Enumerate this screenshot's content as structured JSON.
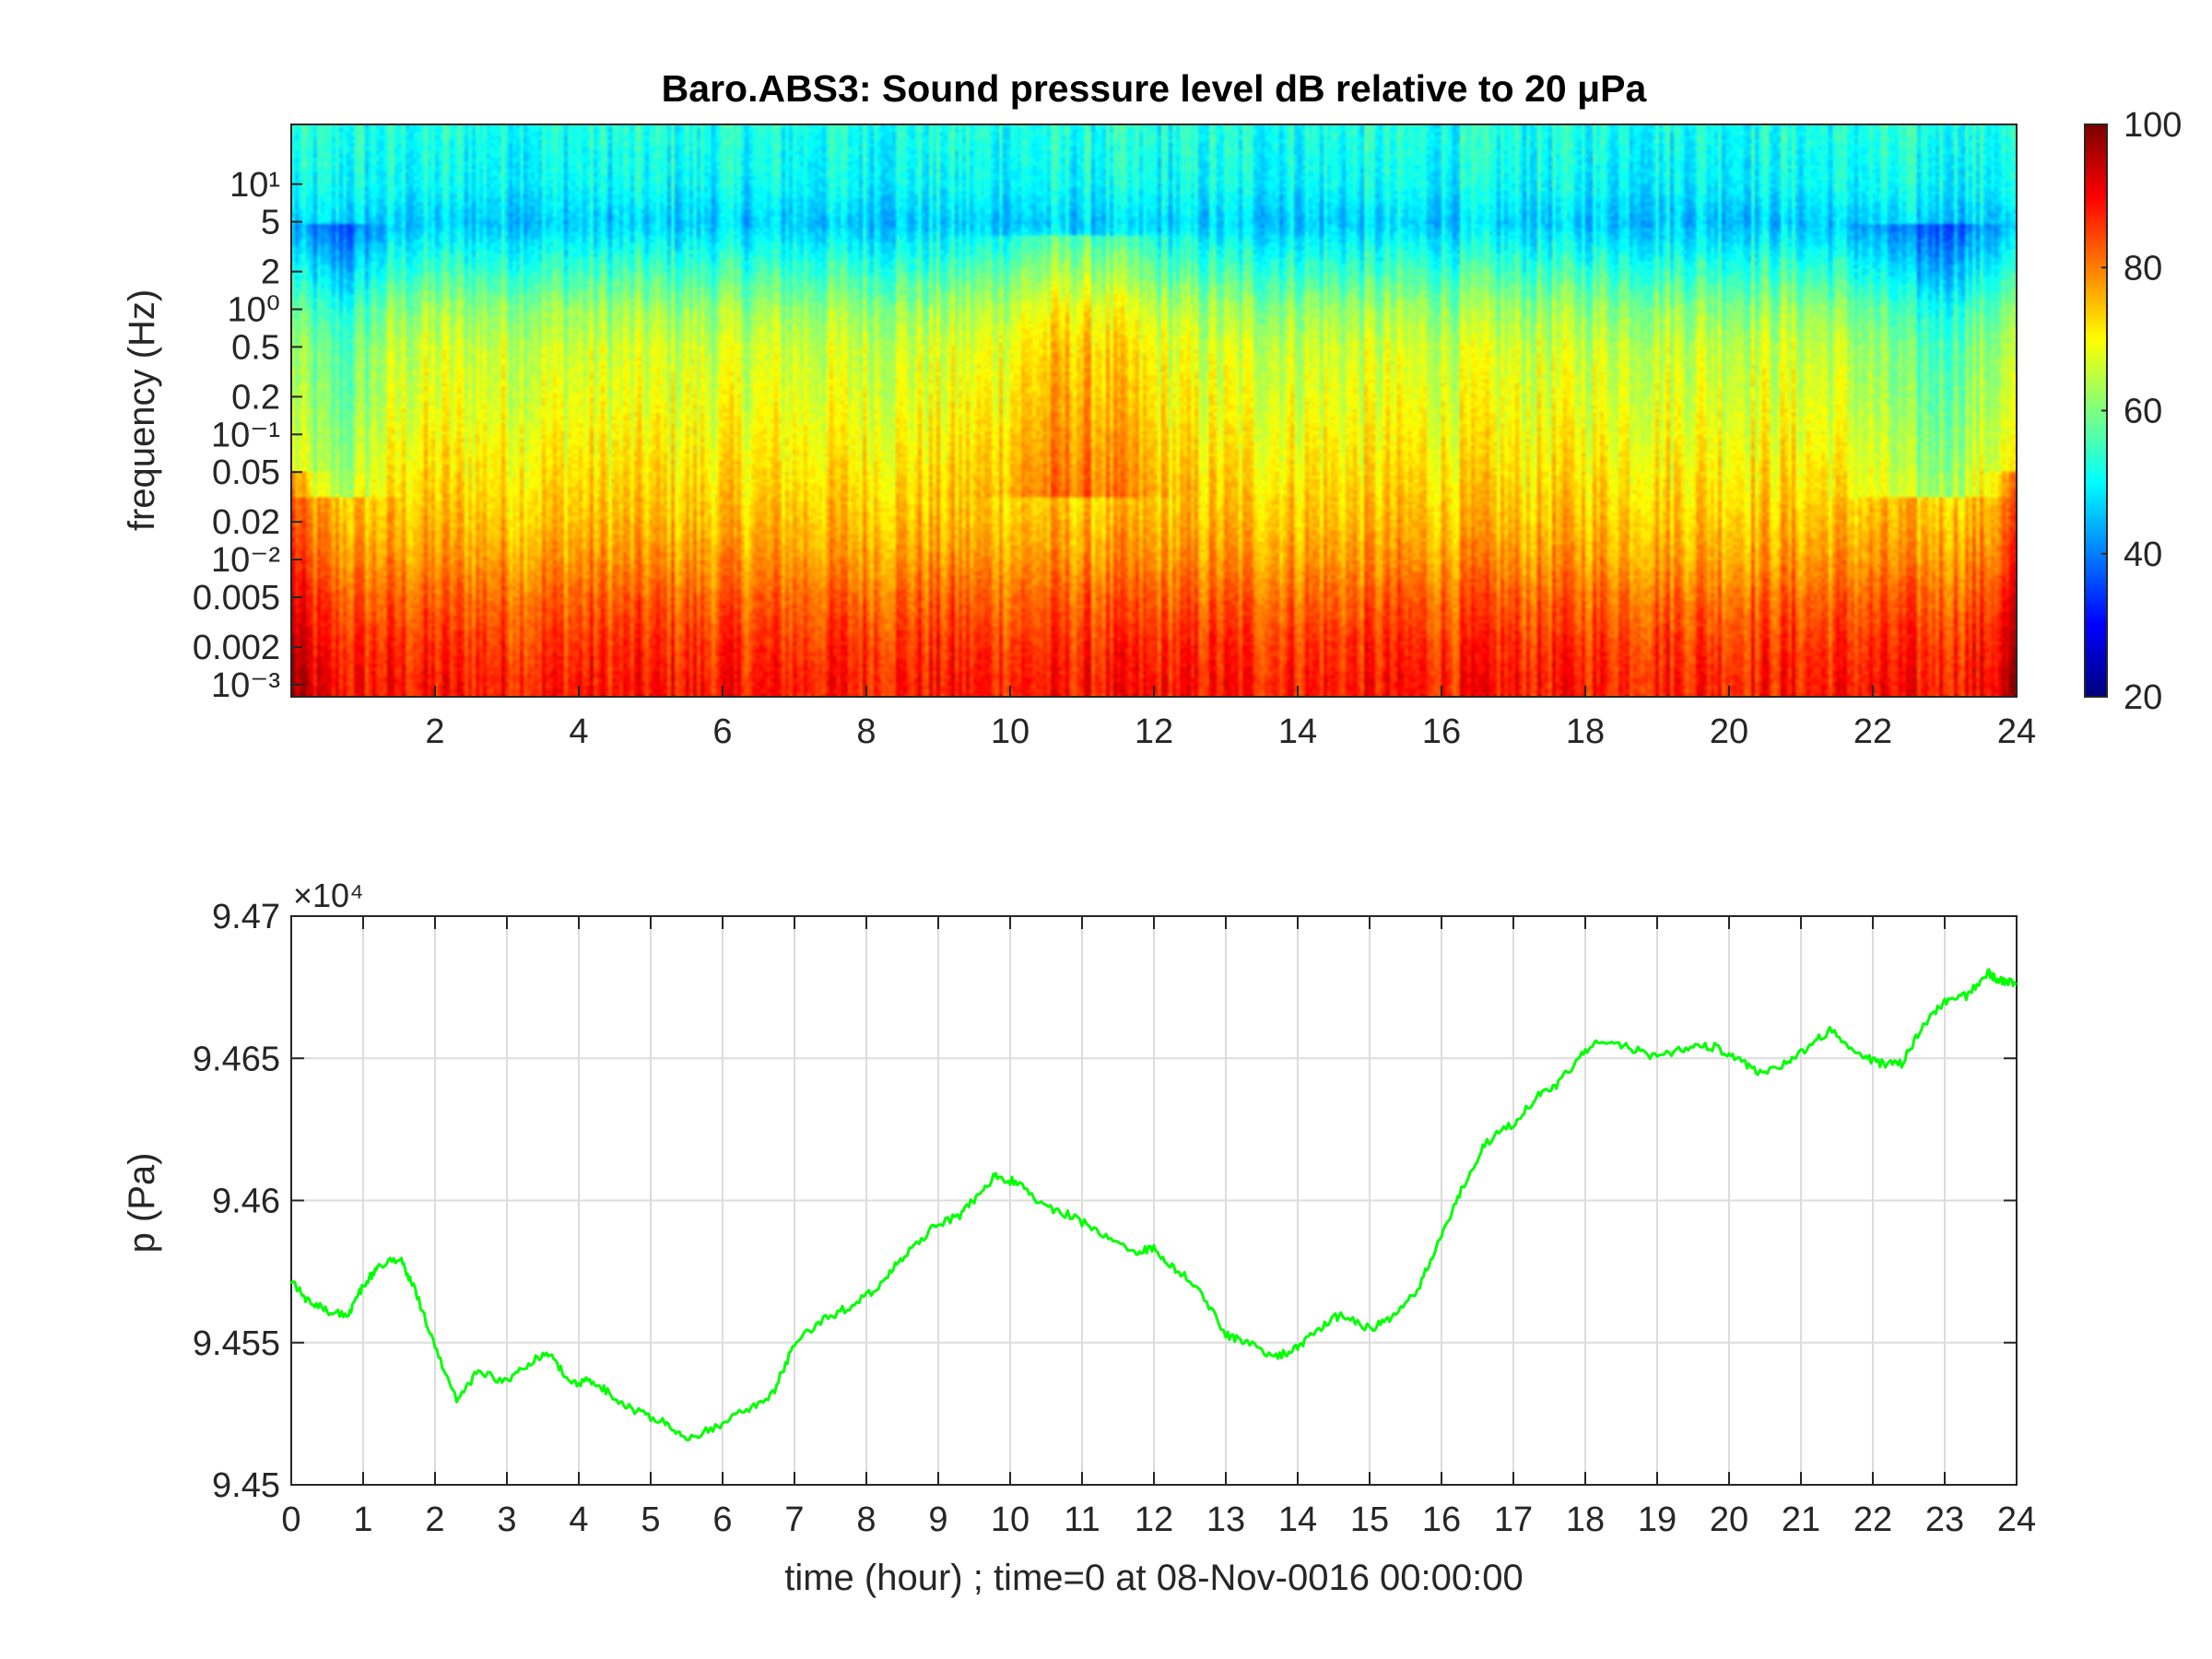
{
  "chart_data": [
    {
      "type": "heatmap",
      "title": "Baro.ABS3: Sound pressure level dB relative to 20 μPa",
      "ylabel": "frequency (Hz)",
      "xlabel": "",
      "x_range": [
        0,
        24
      ],
      "x_ticks": [
        2,
        4,
        6,
        8,
        10,
        12,
        14,
        16,
        18,
        20,
        22,
        24
      ],
      "y_scale": "log",
      "y_range_hz": [
        0.0008,
        30
      ],
      "y_ticks": [
        {
          "label": "10⁻³",
          "value": 0.001
        },
        {
          "label": "0.002",
          "value": 0.002
        },
        {
          "label": "0.005",
          "value": 0.005
        },
        {
          "label": "10⁻²",
          "value": 0.01
        },
        {
          "label": "0.02",
          "value": 0.02
        },
        {
          "label": "0.05",
          "value": 0.05
        },
        {
          "label": "10⁻¹",
          "value": 0.1
        },
        {
          "label": "0.2",
          "value": 0.2
        },
        {
          "label": "0.5",
          "value": 0.5
        },
        {
          "label": "10⁰",
          "value": 1
        },
        {
          "label": "2",
          "value": 2
        },
        {
          "label": "5",
          "value": 5
        },
        {
          "label": "10¹",
          "value": 10
        }
      ],
      "colorbar": {
        "colormap": "jet",
        "range": [
          20,
          100
        ],
        "ticks": [
          20,
          40,
          60,
          80,
          100
        ]
      },
      "approx_db_profile": {
        "description_free_values": true,
        "freq_hz": [
          0.001,
          0.002,
          0.005,
          0.01,
          0.02,
          0.05,
          0.1,
          0.2,
          0.5,
          1,
          2,
          5,
          10,
          30
        ],
        "db_typical": [
          88,
          86,
          82,
          78,
          75,
          72,
          70,
          68,
          66,
          62,
          55,
          46,
          50,
          52
        ]
      }
    },
    {
      "type": "line",
      "title": "",
      "xlabel": "time (hour) ; time=0 at 08-Nov-0016 00:00:00",
      "ylabel": "p (Pa)",
      "y_multiplier_label": "×10⁴",
      "xlim": [
        0,
        24
      ],
      "ylim": [
        94500,
        94700
      ],
      "x_ticks": [
        0,
        1,
        2,
        3,
        4,
        5,
        6,
        7,
        8,
        9,
        10,
        11,
        12,
        13,
        14,
        15,
        16,
        17,
        18,
        19,
        20,
        21,
        22,
        23,
        24
      ],
      "y_ticks": [
        {
          "label": "9.45",
          "value": 94500
        },
        {
          "label": "9.455",
          "value": 94550
        },
        {
          "label": "9.46",
          "value": 94600
        },
        {
          "label": "9.465",
          "value": 94650
        },
        {
          "label": "9.47",
          "value": 94700
        }
      ],
      "grid": true,
      "color": "#00ff00",
      "series": [
        {
          "x": [
            0,
            0.2,
            0.5,
            0.8,
            1.0,
            1.2,
            1.5,
            1.7,
            2.0,
            2.3,
            2.6,
            3.0,
            3.3,
            3.6,
            3.9,
            4.2,
            4.5,
            4.8,
            5.2,
            5.5,
            5.9,
            6.3,
            6.7,
            7.0,
            7.4,
            7.8,
            8.2,
            8.5,
            8.9,
            9.3,
            9.6,
            9.8,
            10.1,
            10.5,
            10.9,
            11.3,
            11.7,
            12.0,
            12.3,
            12.6,
            13.0,
            13.3,
            13.7,
            14.0,
            14.3,
            14.6,
            15.0,
            15.3,
            15.7,
            16.0,
            16.3,
            16.6,
            17.0,
            17.3,
            17.6,
            17.9,
            18.2,
            18.6,
            19.0,
            19.4,
            19.8,
            20.1,
            20.4,
            20.8,
            21.1,
            21.4,
            21.8,
            22.1,
            22.4,
            22.7,
            23.0,
            23.3,
            23.6,
            23.8,
            24.0
          ],
          "y": [
            94572,
            94565,
            94561,
            94560,
            94570,
            94576,
            94580,
            94570,
            94548,
            94530,
            94540,
            94536,
            94543,
            94546,
            94535,
            94537,
            94530,
            94526,
            94522,
            94516,
            94520,
            94526,
            94532,
            94550,
            94558,
            94563,
            94570,
            94580,
            94590,
            94595,
            94603,
            94609,
            94606,
            94598,
            94594,
            94588,
            94582,
            94583,
            94576,
            94570,
            94553,
            94550,
            94545,
            94548,
            94555,
            94560,
            94555,
            94558,
            94570,
            94588,
            94605,
            94620,
            94627,
            94636,
            94640,
            94650,
            94656,
            94654,
            94650,
            94654,
            94654,
            94650,
            94645,
            94648,
            94654,
            94660,
            94652,
            94648,
            94648,
            94662,
            94670,
            94672,
            94680,
            94677,
            94676
          ]
        }
      ]
    }
  ]
}
